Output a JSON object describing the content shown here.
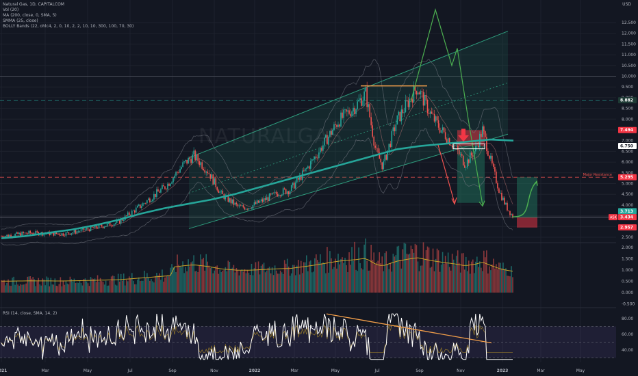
{
  "legend": {
    "title": "Natural Gas, 1D, CAPITALCOM",
    "vol": "Vol (20)",
    "ma": "MA (200, close, 0, SMA, 5)",
    "smma": "SMMA (25, close)",
    "bolly": "BOLLY Bands (22, ohlc4, 2, 0, 10, 2, 2, 10, 10, 300, 100, 70, 30)",
    "rsi": "RSI (14, close, SMA, 14, 2)",
    "currency": "USD"
  },
  "watermark": "NATURALGAS",
  "chart_data": {
    "type": "line",
    "title": "Natural Gas, 1D, CAPITALCOM",
    "x_ticks": [
      "2021",
      "Mar",
      "May",
      "Jul",
      "Sep",
      "Nov",
      "2022",
      "Mar",
      "May",
      "Jul",
      "Sep",
      "Nov",
      "2023",
      "Mar",
      "May"
    ],
    "price_ticks": [
      "12.500",
      "12.000",
      "11.500",
      "11.000",
      "10.500",
      "10.000",
      "9.500",
      "9.000",
      "8.500",
      "8.000",
      "7.500",
      "7.000",
      "6.500",
      "6.000",
      "5.500",
      "5.000",
      "4.500",
      "4.000",
      "3.500",
      "3.000",
      "2.500"
    ],
    "volume_ticks": [
      "2.000",
      "1.500",
      "1.000",
      "0.500",
      "0.000",
      "-0.500"
    ],
    "rsi_ticks": [
      "80.00",
      "60.00",
      "40.00"
    ],
    "price_labels": [
      {
        "text": "8.882",
        "value": 8.882,
        "bg": "#1e3a34",
        "fg": "#ffffff"
      },
      {
        "text": "7.494",
        "value": 7.494,
        "bg": "#f23645",
        "fg": "#ffffff"
      },
      {
        "text": "6.750",
        "value": 6.75,
        "bg": "#ffffff",
        "fg": "#131722"
      },
      {
        "text": "5.295",
        "value": 5.295,
        "bg": "#f23645",
        "fg": "#ffffff"
      },
      {
        "text": "3.713",
        "value": 3.713,
        "bg": "#26a69a",
        "fg": "#ffffff"
      },
      {
        "text": "3.434",
        "value": 3.434,
        "bg": "#f23645",
        "fg": "#ffffff"
      },
      {
        "text": "2.957",
        "value": 2.957,
        "bg": "#f23645",
        "fg": "#ffffff"
      }
    ],
    "price_tag": "ASK",
    "resistance_label": "Major Resistance",
    "ma_series": [
      2.45,
      2.55,
      2.7,
      2.85,
      3.05,
      3.3,
      3.6,
      3.85,
      4.05,
      4.25,
      4.5,
      4.8,
      5.1,
      5.4,
      5.7,
      6.0,
      6.3,
      6.6,
      6.75,
      6.85,
      6.95,
      7.05,
      7.0
    ],
    "colors": {
      "background": "#131722",
      "up": "#26a69a",
      "down": "#ef5350",
      "ma": "#26a69a",
      "channel": "#1f6b58",
      "trendline": "#f5a04a",
      "rsi": "#ffffff"
    }
  }
}
